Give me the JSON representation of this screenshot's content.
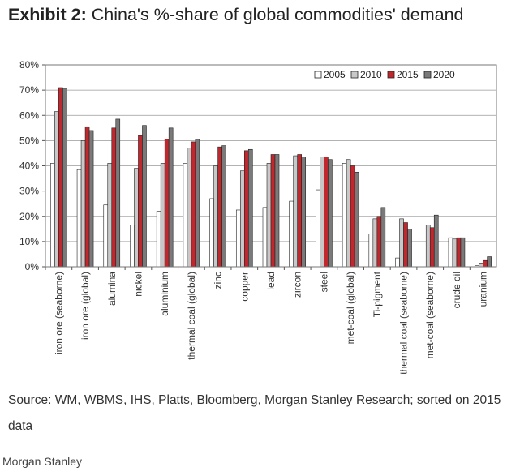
{
  "title": {
    "exhibit": "Exhibit 2:",
    "text": "China's %-share of global commodities' demand"
  },
  "source": "Source: WM, WBMS, IHS, Platts, Bloomberg, Morgan Stanley Research; sorted on 2015 data",
  "footer": "Morgan Stanley",
  "colors": {
    "2005": "#ffffff",
    "2010": "#c8c8c8",
    "2015": "#c0282e",
    "2020": "#7a7a7a"
  },
  "chart_data": {
    "type": "bar",
    "title": "",
    "xlabel": "",
    "ylabel": "",
    "ylim": [
      0,
      80
    ],
    "yticks": [
      "0%",
      "10%",
      "20%",
      "30%",
      "40%",
      "50%",
      "60%",
      "70%",
      "80%"
    ],
    "grid": true,
    "legend_position": "top-right",
    "categories": [
      "iron ore (seaborne)",
      "iron ore (global)",
      "alumina",
      "nickel",
      "aluminium",
      "thermal coal (global)",
      "zinc",
      "copper",
      "lead",
      "zircon",
      "steel",
      "met-coal (global)",
      "Ti-pigment",
      "thermal coal (seaborne)",
      "met-coal (seaborne)",
      "crude oil",
      "uranium"
    ],
    "series": [
      {
        "name": "2005",
        "values": [
          41,
          38.5,
          24.5,
          16.5,
          22,
          41,
          27,
          22.5,
          23.5,
          26,
          30.5,
          41,
          13,
          3.5,
          0,
          11.5,
          0.5
        ]
      },
      {
        "name": "2010",
        "values": [
          61.5,
          50,
          41,
          39,
          41,
          47,
          40,
          38,
          41,
          44,
          43.5,
          42.5,
          19,
          19,
          16.5,
          11,
          1.5
        ]
      },
      {
        "name": "2015",
        "values": [
          71,
          55.5,
          55,
          52,
          50.5,
          49.5,
          47.5,
          46,
          44.5,
          44.5,
          43.5,
          40,
          20,
          17.5,
          15.5,
          11.5,
          2.5
        ]
      },
      {
        "name": "2020",
        "values": [
          70.5,
          54,
          58.5,
          56,
          55,
          50.5,
          48,
          46.5,
          44.5,
          43.5,
          42.5,
          37.5,
          23.5,
          15,
          20.5,
          11.5,
          4
        ]
      }
    ]
  }
}
